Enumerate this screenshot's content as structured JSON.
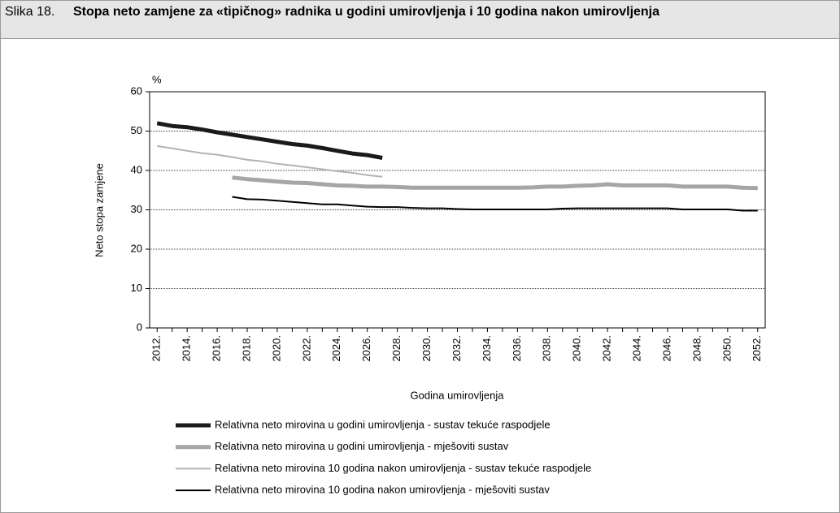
{
  "figure_label": "Slika 18.",
  "chart_data": {
    "type": "line",
    "title": "Stopa neto zamjene za «tipičnog» radnika u godini umirovljenja i 10 godina nakon umirovljenja",
    "y_unit": "%",
    "ylabel": "Neto stopa zamjene",
    "xlabel": "Godina umirovljenja",
    "categories": [
      "2012.",
      null,
      "2014.",
      null,
      "2016.",
      null,
      "2018.",
      null,
      "2020.",
      null,
      "2022.",
      null,
      "2024.",
      null,
      "2026.",
      null,
      "2028.",
      null,
      "2030.",
      null,
      "2032.",
      null,
      "2034.",
      null,
      "2036.",
      null,
      "2038.",
      null,
      "2040.",
      null,
      "2042.",
      null,
      "2044.",
      null,
      "2046.",
      null,
      "2048.",
      null,
      "2050.",
      null,
      "2052."
    ],
    "ylim": [
      0,
      60
    ],
    "yticks": [
      0,
      10,
      20,
      30,
      40,
      50,
      60
    ],
    "grid": true,
    "legend": "bottom",
    "series": [
      {
        "name": "Relativna neto mirovina u godini umirovljenja - sustav tekuće raspodjele",
        "color": "#1a1a1a",
        "values": [
          52,
          51.3,
          51,
          50.4,
          49.7,
          49.1,
          48.5,
          47.9,
          47.3,
          46.7,
          46.3,
          45.7,
          45,
          44.3,
          43.9,
          43.2,
          null,
          null,
          null,
          null,
          null,
          null,
          null,
          null,
          null,
          null,
          null,
          null,
          null,
          null,
          null,
          null,
          null,
          null,
          null,
          null,
          null,
          null,
          null,
          null,
          null
        ]
      },
      {
        "name": "Relativna neto mirovina u godini umirovljenja - mješoviti sustav",
        "color": "#a6a6a6",
        "values": [
          null,
          null,
          null,
          null,
          null,
          38.2,
          37.8,
          37.5,
          37.2,
          36.9,
          36.8,
          36.5,
          36.2,
          36.1,
          35.9,
          35.9,
          35.8,
          35.6,
          35.6,
          35.6,
          35.6,
          35.6,
          35.6,
          35.6,
          35.6,
          35.7,
          35.9,
          35.9,
          36.1,
          36.2,
          36.5,
          36.2,
          36.2,
          36.2,
          36.2,
          35.9,
          35.9,
          35.9,
          35.9,
          35.6,
          35.5
        ]
      },
      {
        "name": "Relativna neto mirovina 10 godina nakon umirovljenja - sustav tekuće raspodjele",
        "color": "#b3b3b3",
        "values": [
          46.2,
          45.6,
          45,
          44.4,
          44,
          43.4,
          42.7,
          42.3,
          41.7,
          41.3,
          40.8,
          40.3,
          39.8,
          39.4,
          38.8,
          38.4,
          null,
          null,
          null,
          null,
          null,
          null,
          null,
          null,
          null,
          null,
          null,
          null,
          null,
          null,
          null,
          null,
          null,
          null,
          null,
          null,
          null,
          null,
          null,
          null,
          null
        ]
      },
      {
        "name": "Relativna neto mirovina 10 godina nakon umirovljenja - mješoviti sustav",
        "color": "#000000",
        "values": [
          null,
          null,
          null,
          null,
          null,
          33.3,
          32.7,
          32.6,
          32.3,
          32,
          31.7,
          31.4,
          31.4,
          31.1,
          30.8,
          30.7,
          30.7,
          30.5,
          30.4,
          30.4,
          30.2,
          30.1,
          30.1,
          30.1,
          30.1,
          30.1,
          30.1,
          30.3,
          30.4,
          30.4,
          30.4,
          30.4,
          30.4,
          30.4,
          30.4,
          30.1,
          30.1,
          30.1,
          30.1,
          29.8,
          29.8
        ]
      }
    ]
  }
}
